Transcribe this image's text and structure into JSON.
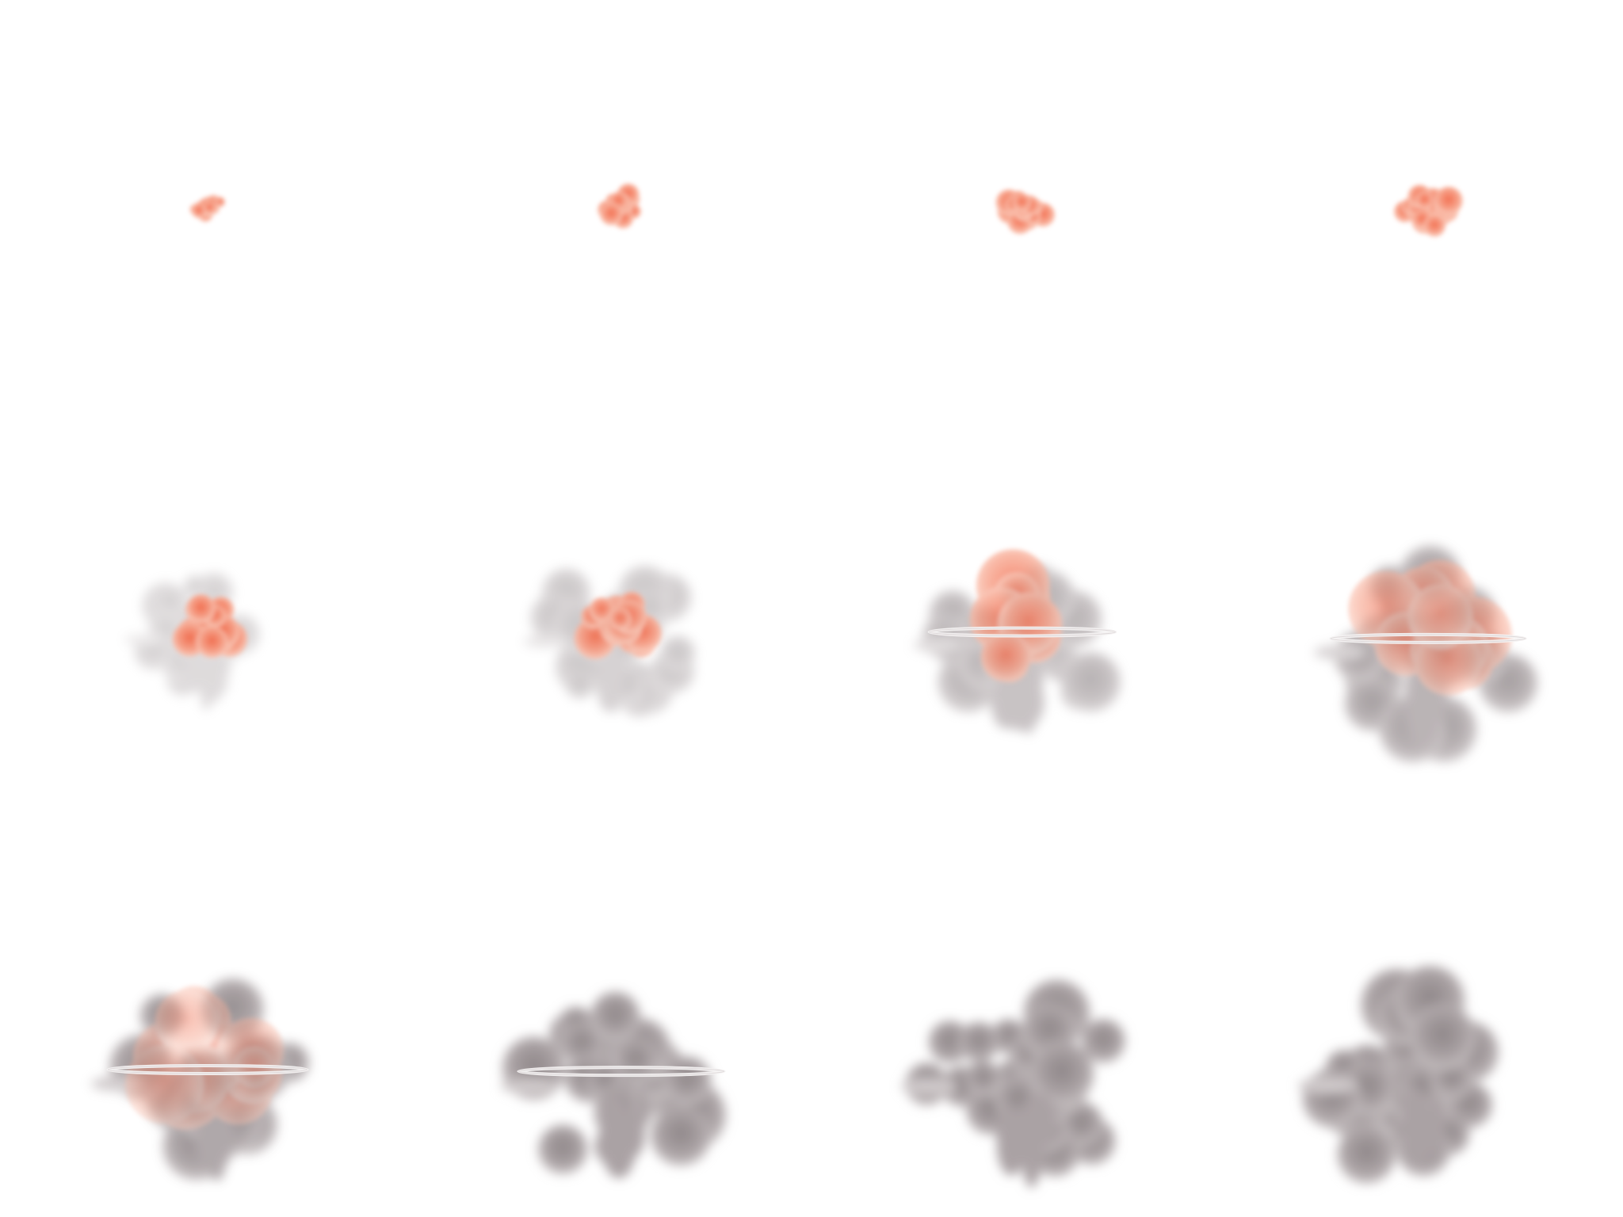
{
  "sequence": {
    "layout": "grid",
    "rows": 3,
    "columns": 4,
    "frames": [
      {
        "stage": "fireball-small",
        "fire_level": 1.0,
        "smoke_level": 0.0,
        "size_level": 0.32,
        "shockwave_ring": false
      },
      {
        "stage": "fireball-growing",
        "fire_level": 1.0,
        "smoke_level": 0.0,
        "size_level": 0.42,
        "shockwave_ring": false
      },
      {
        "stage": "fireball-growing",
        "fire_level": 1.0,
        "smoke_level": 0.0,
        "size_level": 0.48,
        "shockwave_ring": false
      },
      {
        "stage": "fireball-growing",
        "fire_level": 1.0,
        "smoke_level": 0.0,
        "size_level": 0.56,
        "shockwave_ring": false
      },
      {
        "stage": "fireball-expanding",
        "fire_level": 1.0,
        "smoke_level": 0.05,
        "size_level": 0.66,
        "shockwave_ring": false
      },
      {
        "stage": "fireball-with-smoke",
        "fire_level": 0.9,
        "smoke_level": 0.2,
        "size_level": 0.76,
        "shockwave_ring": false
      },
      {
        "stage": "fire-and-smoke",
        "fire_level": 0.65,
        "smoke_level": 0.45,
        "size_level": 0.86,
        "shockwave_ring": true
      },
      {
        "stage": "smoke-dominant",
        "fire_level": 0.35,
        "smoke_level": 0.7,
        "size_level": 0.9,
        "shockwave_ring": true
      },
      {
        "stage": "smoke-plume",
        "fire_level": 0.1,
        "smoke_level": 0.9,
        "size_level": 0.92,
        "shockwave_ring": true
      },
      {
        "stage": "smoke-plume",
        "fire_level": 0.0,
        "smoke_level": 1.0,
        "size_level": 0.95,
        "shockwave_ring": true
      },
      {
        "stage": "smoke-plume",
        "fire_level": 0.0,
        "smoke_level": 1.0,
        "size_level": 0.97,
        "shockwave_ring": false
      },
      {
        "stage": "smoke-plume",
        "fire_level": 0.0,
        "smoke_level": 1.0,
        "size_level": 1.0,
        "shockwave_ring": false
      }
    ]
  },
  "palette": {
    "background": "#ffffff",
    "fire_core": "#f26a4a",
    "fire_mid": "#f79a80",
    "fire_edge": "#fbd2c3",
    "smoke_dark": "#8e8688",
    "smoke_mid": "#aaa2a4",
    "smoke_light": "#cfc9ca",
    "ring": "#f4f2f2"
  }
}
